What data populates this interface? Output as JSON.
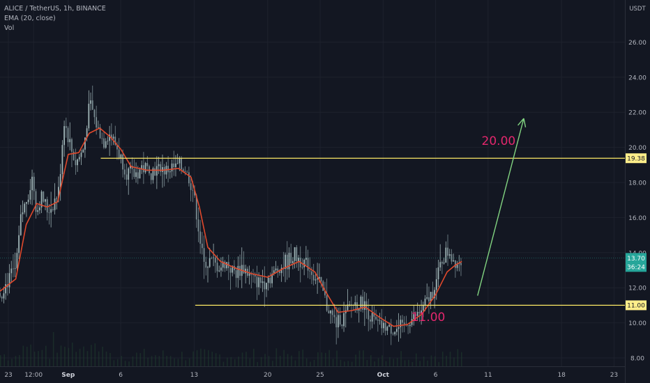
{
  "header": {
    "symbol_line": "ALICE / TetherUS, 1h, BINANCE",
    "indicator_line": "EMA (20, close)",
    "volume_line": "Vol",
    "currency": "USDT"
  },
  "chart_data": {
    "type": "candlestick",
    "symbol": "ALICE / TetherUS",
    "interval": "1h",
    "exchange": "BINANCE",
    "indicators": [
      "EMA (20, close)",
      "Vol"
    ],
    "ylim": [
      7.6,
      28.0
    ],
    "y_ticks": [
      "26.00",
      "24.00",
      "22.00",
      "20.00",
      "18.00",
      "16.00",
      "14.00",
      "12.00",
      "10.00",
      "8.00"
    ],
    "y_tick_values": [
      26,
      24,
      22,
      20,
      18,
      16,
      14,
      12,
      10,
      8
    ],
    "x_range_days": [
      0,
      52
    ],
    "x_ticks": [
      {
        "label": "23",
        "day": 0.8
      },
      {
        "label": "12:00",
        "day": 3.2
      },
      {
        "label": "Sep",
        "day": 6.5
      },
      {
        "label": "6",
        "day": 11.5
      },
      {
        "label": "13",
        "day": 18.5
      },
      {
        "label": "20",
        "day": 25.5
      },
      {
        "label": "25",
        "day": 30.5
      },
      {
        "label": "Oct",
        "day": 36.5
      },
      {
        "label": "6",
        "day": 41.5
      },
      {
        "label": "11",
        "day": 46.5
      },
      {
        "label": "18",
        "day": 53.5
      },
      {
        "label": "23",
        "day": 58.5
      }
    ],
    "price_path": [
      {
        "day": 0,
        "price": 11.7
      },
      {
        "day": 0.8,
        "price": 12.4
      },
      {
        "day": 1.5,
        "price": 13.0
      },
      {
        "day": 2.0,
        "price": 16.0
      },
      {
        "day": 2.6,
        "price": 17.2
      },
      {
        "day": 3.1,
        "price": 18.3
      },
      {
        "day": 3.5,
        "price": 16.3
      },
      {
        "day": 4.0,
        "price": 17.2
      },
      {
        "day": 4.5,
        "price": 16.4
      },
      {
        "day": 5.0,
        "price": 16.7
      },
      {
        "day": 5.6,
        "price": 17.5
      },
      {
        "day": 6.1,
        "price": 21.6
      },
      {
        "day": 6.6,
        "price": 20.3
      },
      {
        "day": 7.2,
        "price": 19.1
      },
      {
        "day": 7.9,
        "price": 19.8
      },
      {
        "day": 8.6,
        "price": 22.6
      },
      {
        "day": 9.1,
        "price": 21.4
      },
      {
        "day": 9.8,
        "price": 20.4
      },
      {
        "day": 10.5,
        "price": 20.8
      },
      {
        "day": 11.2,
        "price": 19.9
      },
      {
        "day": 12.0,
        "price": 18.6
      },
      {
        "day": 12.8,
        "price": 18.4
      },
      {
        "day": 13.6,
        "price": 18.9
      },
      {
        "day": 14.5,
        "price": 18.7
      },
      {
        "day": 15.4,
        "price": 18.8
      },
      {
        "day": 16.1,
        "price": 18.7
      },
      {
        "day": 16.9,
        "price": 18.9
      },
      {
        "day": 17.6,
        "price": 18.8
      },
      {
        "day": 18.4,
        "price": 17.6
      },
      {
        "day": 18.9,
        "price": 15.5
      },
      {
        "day": 19.4,
        "price": 13.2
      },
      {
        "day": 20.0,
        "price": 13.6
      },
      {
        "day": 20.8,
        "price": 13.1
      },
      {
        "day": 21.6,
        "price": 13.4
      },
      {
        "day": 22.4,
        "price": 12.9
      },
      {
        "day": 23.2,
        "price": 13.2
      },
      {
        "day": 24.0,
        "price": 12.5
      },
      {
        "day": 24.8,
        "price": 12.3
      },
      {
        "day": 25.6,
        "price": 12.6
      },
      {
        "day": 26.4,
        "price": 13.0
      },
      {
        "day": 27.2,
        "price": 13.4
      },
      {
        "day": 28.0,
        "price": 13.8
      },
      {
        "day": 28.8,
        "price": 13.6
      },
      {
        "day": 29.6,
        "price": 13.0
      },
      {
        "day": 30.4,
        "price": 12.3
      },
      {
        "day": 31.2,
        "price": 10.9
      },
      {
        "day": 32.0,
        "price": 10.0
      },
      {
        "day": 32.8,
        "price": 10.3
      },
      {
        "day": 33.6,
        "price": 11.1
      },
      {
        "day": 34.4,
        "price": 11.2
      },
      {
        "day": 35.2,
        "price": 10.5
      },
      {
        "day": 36.0,
        "price": 9.9
      },
      {
        "day": 36.8,
        "price": 9.7
      },
      {
        "day": 37.6,
        "price": 9.6
      },
      {
        "day": 38.4,
        "price": 9.7
      },
      {
        "day": 39.2,
        "price": 10.2
      },
      {
        "day": 40.0,
        "price": 10.6
      },
      {
        "day": 40.8,
        "price": 11.3
      },
      {
        "day": 41.6,
        "price": 12.4
      },
      {
        "day": 42.2,
        "price": 13.8
      },
      {
        "day": 42.8,
        "price": 14.1
      },
      {
        "day": 43.4,
        "price": 13.4
      },
      {
        "day": 44.0,
        "price": 13.7
      }
    ],
    "ema": [
      {
        "day": 0,
        "price": 11.8
      },
      {
        "day": 1.5,
        "price": 12.5
      },
      {
        "day": 2.5,
        "price": 15.6
      },
      {
        "day": 3.5,
        "price": 16.8
      },
      {
        "day": 4.5,
        "price": 16.6
      },
      {
        "day": 5.5,
        "price": 16.9
      },
      {
        "day": 6.5,
        "price": 19.6
      },
      {
        "day": 7.5,
        "price": 19.7
      },
      {
        "day": 8.5,
        "price": 20.8
      },
      {
        "day": 9.5,
        "price": 21.1
      },
      {
        "day": 10.5,
        "price": 20.6
      },
      {
        "day": 11.5,
        "price": 19.9
      },
      {
        "day": 12.5,
        "price": 18.9
      },
      {
        "day": 14.0,
        "price": 18.7
      },
      {
        "day": 15.5,
        "price": 18.7
      },
      {
        "day": 17.0,
        "price": 18.8
      },
      {
        "day": 18.2,
        "price": 18.3
      },
      {
        "day": 19.0,
        "price": 16.6
      },
      {
        "day": 19.8,
        "price": 14.3
      },
      {
        "day": 21.0,
        "price": 13.5
      },
      {
        "day": 22.5,
        "price": 13.1
      },
      {
        "day": 24.0,
        "price": 12.8
      },
      {
        "day": 25.5,
        "price": 12.6
      },
      {
        "day": 27.0,
        "price": 13.1
      },
      {
        "day": 28.5,
        "price": 13.5
      },
      {
        "day": 30.0,
        "price": 12.9
      },
      {
        "day": 31.0,
        "price": 11.8
      },
      {
        "day": 32.2,
        "price": 10.6
      },
      {
        "day": 33.5,
        "price": 10.7
      },
      {
        "day": 34.8,
        "price": 10.9
      },
      {
        "day": 36.2,
        "price": 10.3
      },
      {
        "day": 37.5,
        "price": 9.8
      },
      {
        "day": 38.8,
        "price": 9.9
      },
      {
        "day": 40.2,
        "price": 10.5
      },
      {
        "day": 41.5,
        "price": 11.6
      },
      {
        "day": 42.6,
        "price": 12.9
      },
      {
        "day": 43.4,
        "price": 13.3
      },
      {
        "day": 44.0,
        "price": 13.5
      }
    ],
    "levels": [
      {
        "name": "resistance",
        "price": 19.38,
        "label": "19.38",
        "start_day": 9.6
      },
      {
        "name": "support",
        "price": 11.0,
        "label": "11.00",
        "start_day": 18.6
      }
    ],
    "annotations": [
      {
        "name": "target-label",
        "text": "20.00",
        "day": 47.5,
        "price": 20.15
      },
      {
        "name": "support-label",
        "text": "11.00",
        "day": 40.8,
        "price": 10.1
      }
    ],
    "arrow": {
      "from": {
        "day": 45.5,
        "price": 11.55
      },
      "to": {
        "day": 49.9,
        "price": 21.65
      }
    },
    "last_price": {
      "value": "13.70",
      "countdown": "36:24",
      "price": 13.7
    },
    "colors": {
      "background": "#131722",
      "ema": "#e0492c",
      "candles": "#8aa3a8",
      "level_line": "#ffeb66",
      "level_label_bg": "#ffee8a",
      "annotation_text": "#e3276d",
      "arrow": "#82d481",
      "last_price_bg": "#26a69a",
      "axis_text": "#b2b5be"
    }
  }
}
